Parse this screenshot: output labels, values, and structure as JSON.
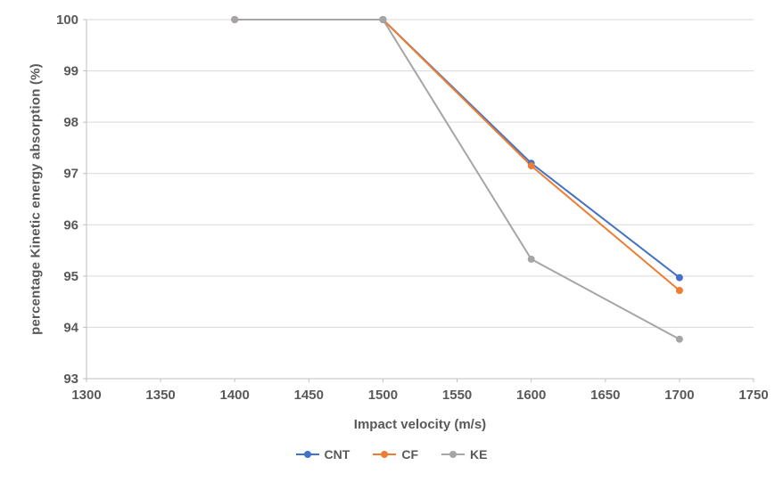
{
  "chart_data": {
    "type": "line",
    "x": [
      1400,
      1500,
      1600,
      1700
    ],
    "series": [
      {
        "name": "CNT",
        "color": "#4472C4",
        "values": [
          100,
          100,
          97.2,
          94.97
        ]
      },
      {
        "name": "CF",
        "color": "#ED7D31",
        "values": [
          100,
          100,
          97.15,
          94.72
        ]
      },
      {
        "name": "KE",
        "color": "#A5A5A5",
        "values": [
          100,
          100,
          95.33,
          93.77
        ]
      }
    ],
    "title": "",
    "xlabel": "Impact velocity (m/s)",
    "ylabel": "percentage Kinetic energy absorption (%)",
    "xlim": [
      1300,
      1750
    ],
    "ylim": [
      93,
      100
    ],
    "xticks": [
      1300,
      1350,
      1400,
      1450,
      1500,
      1550,
      1600,
      1650,
      1700,
      1750
    ],
    "yticks": [
      93,
      94,
      95,
      96,
      97,
      98,
      99,
      100
    ],
    "grid": true,
    "gridline_color": "#D9D9D9",
    "axis_line_color": "#BFBFBF",
    "tick_text_color": "#595959",
    "legend_position": "bottom",
    "marker": "circle"
  }
}
